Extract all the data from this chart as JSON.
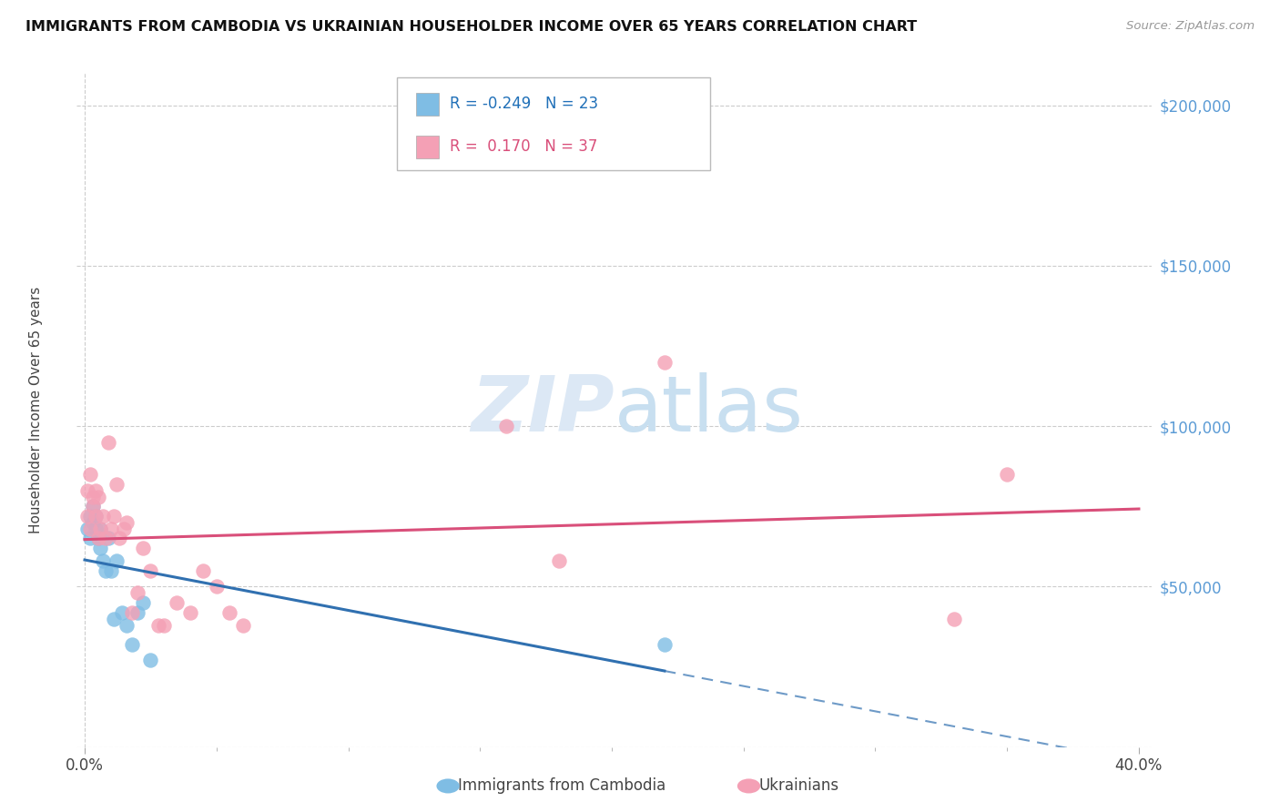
{
  "title": "IMMIGRANTS FROM CAMBODIA VS UKRAINIAN HOUSEHOLDER INCOME OVER 65 YEARS CORRELATION CHART",
  "source": "Source: ZipAtlas.com",
  "ylabel": "Householder Income Over 65 years",
  "xlim": [
    0.0,
    0.4
  ],
  "ylim": [
    0,
    210000
  ],
  "background_color": "#ffffff",
  "legend_R_cambodia": "-0.249",
  "legend_N_cambodia": "23",
  "legend_R_ukrainian": "0.170",
  "legend_N_ukrainian": "37",
  "cambodia_color": "#7fbde4",
  "ukrainian_color": "#f4a0b5",
  "cambodia_line_color": "#3070b0",
  "ukrainian_line_color": "#d94f7a",
  "grid_color": "#cccccc",
  "ytick_color": "#5b9bd5",
  "cambodia_x": [
    0.001,
    0.002,
    0.002,
    0.003,
    0.003,
    0.004,
    0.004,
    0.005,
    0.006,
    0.006,
    0.007,
    0.008,
    0.009,
    0.01,
    0.011,
    0.012,
    0.014,
    0.016,
    0.018,
    0.02,
    0.022,
    0.025,
    0.22
  ],
  "cambodia_y": [
    68000,
    65000,
    72000,
    70000,
    75000,
    68000,
    72000,
    65000,
    68000,
    62000,
    58000,
    55000,
    65000,
    55000,
    40000,
    58000,
    42000,
    38000,
    32000,
    42000,
    45000,
    27000,
    32000
  ],
  "ukrainian_x": [
    0.001,
    0.001,
    0.002,
    0.002,
    0.003,
    0.003,
    0.004,
    0.004,
    0.005,
    0.005,
    0.006,
    0.007,
    0.008,
    0.009,
    0.01,
    0.011,
    0.012,
    0.013,
    0.015,
    0.016,
    0.018,
    0.02,
    0.022,
    0.025,
    0.028,
    0.03,
    0.035,
    0.04,
    0.045,
    0.05,
    0.055,
    0.06,
    0.16,
    0.18,
    0.22,
    0.33,
    0.35
  ],
  "ukrainian_y": [
    80000,
    72000,
    68000,
    85000,
    75000,
    78000,
    72000,
    80000,
    65000,
    78000,
    68000,
    72000,
    65000,
    95000,
    68000,
    72000,
    82000,
    65000,
    68000,
    70000,
    42000,
    48000,
    62000,
    55000,
    38000,
    38000,
    45000,
    42000,
    55000,
    50000,
    42000,
    38000,
    100000,
    58000,
    120000,
    40000,
    85000
  ]
}
